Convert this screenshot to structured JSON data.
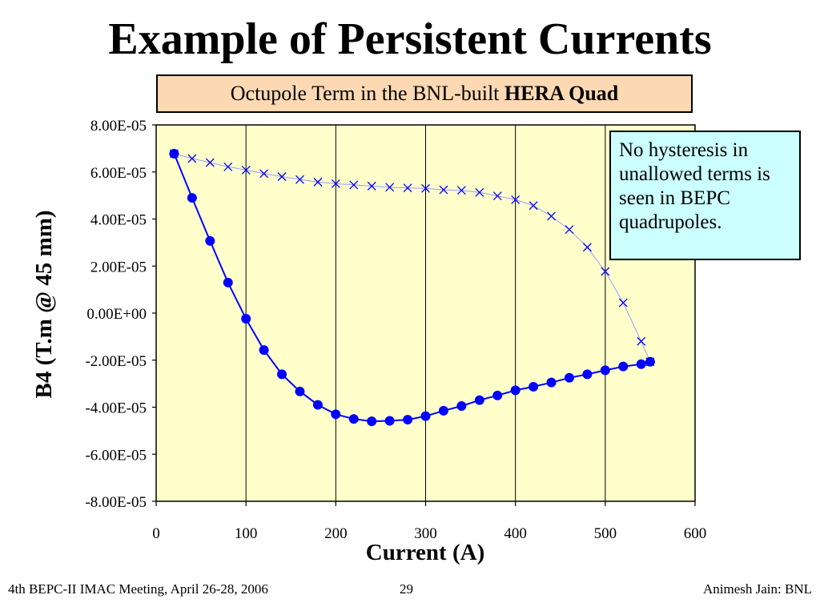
{
  "slide": {
    "title": "Example of Persistent Currents",
    "subtitle_prefix": "Octupole Term in the BNL-built ",
    "subtitle_bold": "HERA Quad",
    "note": "No hysteresis in unallowed terms is seen in BEPC quadrupoles.",
    "footer_left": "4th BEPC-II IMAC Meeting, April 26-28, 2006",
    "footer_center": "29",
    "footer_right": "Animesh Jain: BNL"
  },
  "chart_data": {
    "type": "line",
    "xlabel": "Current (A)",
    "ylabel": "B4 (T.m @ 45 mm)",
    "xlim": [
      0,
      600
    ],
    "ylim": [
      -8e-05,
      8e-05
    ],
    "x_ticks": [
      "0",
      "100",
      "200",
      "300",
      "400",
      "500",
      "600"
    ],
    "y_ticks": [
      "8.00E-05",
      "6.00E-05",
      "4.00E-05",
      "2.00E-05",
      "0.00E+00",
      "-2.00E-05",
      "-4.00E-05",
      "-6.00E-05",
      "-8.00E-05"
    ],
    "grid": true,
    "colors": {
      "plot_bg": "#ffffcc",
      "series": "#0000ff",
      "descending_line": "#9999ff"
    },
    "series": [
      {
        "marker": "circle",
        "x": [
          20,
          40,
          60,
          80,
          100,
          120,
          140,
          160,
          180,
          200,
          220,
          240,
          260,
          280,
          300,
          320,
          340,
          360,
          380,
          400,
          420,
          440,
          460,
          480,
          500,
          520,
          540,
          550
        ],
        "y": [
          6.78e-05,
          4.9e-05,
          3.07e-05,
          1.3e-05,
          -2.4e-06,
          -1.57e-05,
          -2.6e-05,
          -3.33e-05,
          -3.9e-05,
          -4.3e-05,
          -4.5e-05,
          -4.6e-05,
          -4.58e-05,
          -4.53e-05,
          -4.38e-05,
          -4.15e-05,
          -3.95e-05,
          -3.7e-05,
          -3.5e-05,
          -3.28e-05,
          -3.13e-05,
          -2.95e-05,
          -2.75e-05,
          -2.6e-05,
          -2.43e-05,
          -2.27e-05,
          -2.17e-05,
          -2.07e-05
        ]
      },
      {
        "marker": "x",
        "x": [
          550,
          540,
          520,
          500,
          480,
          460,
          440,
          420,
          400,
          380,
          360,
          340,
          320,
          300,
          280,
          260,
          240,
          220,
          200,
          180,
          160,
          140,
          120,
          100,
          80,
          60,
          40,
          20
        ],
        "y": [
          -2.07e-05,
          -1.2e-05,
          4.4e-06,
          1.77e-05,
          2.8e-05,
          3.55e-05,
          4.12e-05,
          4.57e-05,
          4.82e-05,
          4.98e-05,
          5.13e-05,
          5.22e-05,
          5.24e-05,
          5.3e-05,
          5.32e-05,
          5.35e-05,
          5.4e-05,
          5.45e-05,
          5.5e-05,
          5.57e-05,
          5.68e-05,
          5.8e-05,
          5.93e-05,
          6.08e-05,
          6.22e-05,
          6.4e-05,
          6.57e-05,
          6.78e-05
        ]
      }
    ]
  }
}
